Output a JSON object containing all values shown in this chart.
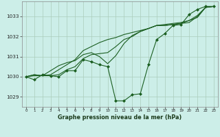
{
  "title": "Graphe pression niveau de la mer (hPa)",
  "bg_color": "#cceee8",
  "grid_color": "#aaccbb",
  "line_color": "#1a5e20",
  "marker_color": "#1a5e20",
  "xlim": [
    -0.5,
    23.5
  ],
  "ylim": [
    1028.5,
    1033.75
  ],
  "yticks": [
    1029,
    1030,
    1031,
    1032,
    1033
  ],
  "xticks": [
    0,
    1,
    2,
    3,
    4,
    5,
    6,
    7,
    8,
    9,
    10,
    11,
    12,
    13,
    14,
    15,
    16,
    17,
    18,
    19,
    20,
    21,
    22,
    23
  ],
  "series": [
    [
      1030.0,
      1029.85,
      1030.1,
      1030.05,
      1030.0,
      1030.3,
      1030.3,
      1030.85,
      1030.75,
      1030.6,
      1030.5,
      1028.8,
      1028.8,
      1029.1,
      1029.15,
      1030.6,
      1031.85,
      1032.15,
      1032.55,
      1032.6,
      1033.1,
      1033.35,
      1033.5,
      1033.5
    ],
    [
      1030.0,
      1030.05,
      1030.05,
      1030.1,
      1030.35,
      1030.6,
      1030.85,
      1031.3,
      1031.5,
      1031.7,
      1031.85,
      1031.95,
      1032.1,
      1032.2,
      1032.3,
      1032.4,
      1032.55,
      1032.6,
      1032.65,
      1032.7,
      1032.8,
      1033.05,
      1033.45,
      1033.5
    ],
    [
      1030.0,
      1030.1,
      1030.05,
      1030.05,
      1030.1,
      1030.35,
      1030.5,
      1030.9,
      1031.1,
      1031.15,
      1031.2,
      1031.5,
      1031.85,
      1032.0,
      1032.25,
      1032.4,
      1032.55,
      1032.55,
      1032.6,
      1032.65,
      1032.7,
      1033.0,
      1033.45,
      1033.5
    ],
    [
      1030.0,
      1030.1,
      1030.05,
      1030.3,
      1030.55,
      1030.7,
      1030.8,
      1031.1,
      1031.2,
      1031.0,
      1030.65,
      1031.05,
      1031.65,
      1032.05,
      1032.25,
      1032.4,
      1032.55,
      1032.55,
      1032.6,
      1032.65,
      1032.8,
      1032.95,
      1033.45,
      1033.5
    ]
  ],
  "marker_series_idx": 0,
  "figsize": [
    3.2,
    2.0
  ],
  "dpi": 100
}
